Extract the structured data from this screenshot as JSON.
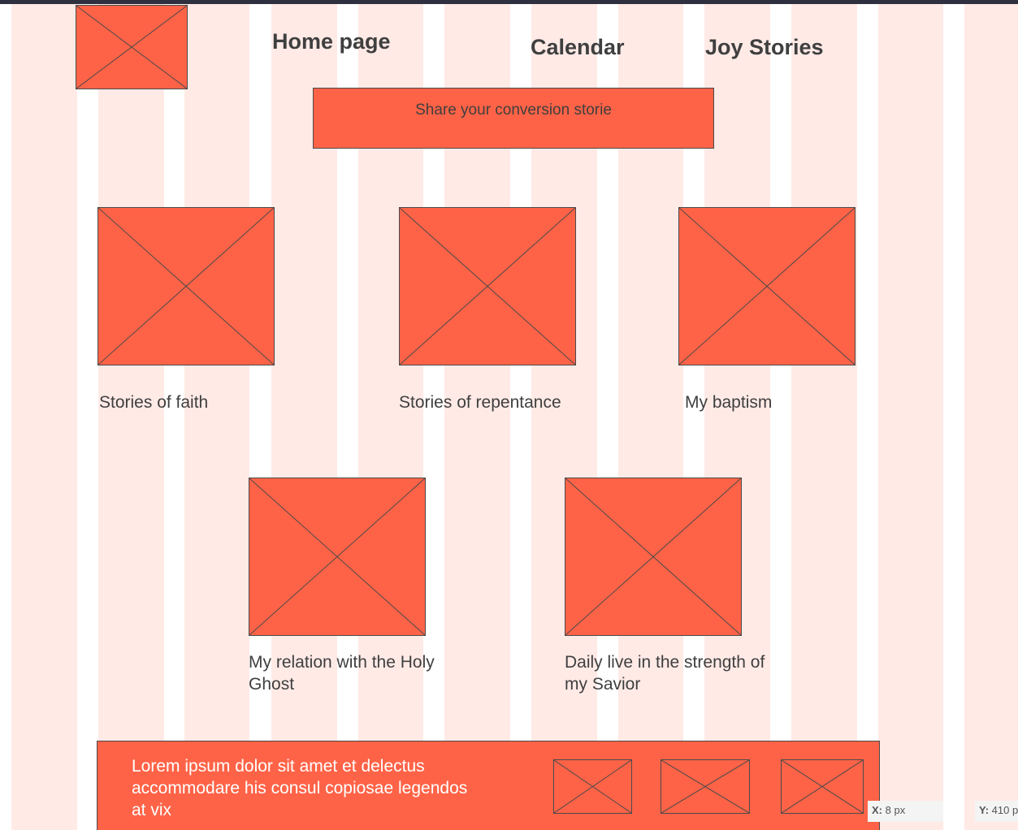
{
  "colors": {
    "accent": "#ff6347",
    "grid_column": "#ffeae6",
    "top_bar": "#2e3040",
    "text": "#3f3f3f",
    "outline": "#4a4a4a"
  },
  "header": {
    "logo_icon": "image-placeholder-icon",
    "nav": {
      "home": "Home page",
      "calendar": "Calendar",
      "joy": "Joy Stories"
    },
    "share_button": "Share your conversion storie"
  },
  "stories": [
    {
      "icon": "image-placeholder-icon",
      "caption": "Stories of faith"
    },
    {
      "icon": "image-placeholder-icon",
      "caption": "Stories of repentance"
    },
    {
      "icon": "image-placeholder-icon",
      "caption": "My baptism"
    },
    {
      "icon": "image-placeholder-icon",
      "caption": "My relation with the Holy Ghost"
    },
    {
      "icon": "image-placeholder-icon",
      "caption": "Daily live in the strength of my Savior"
    }
  ],
  "footer": {
    "text": "Lorem ipsum dolor sit amet et delectus accommodare his consul copiosae legendos at vix",
    "thumbnails": [
      "image-placeholder-icon",
      "image-placeholder-icon",
      "image-placeholder-icon"
    ]
  },
  "coordinates": {
    "x_label": "X:",
    "x_value": "8 px",
    "y_label": "Y:",
    "y_value": "410 p"
  }
}
